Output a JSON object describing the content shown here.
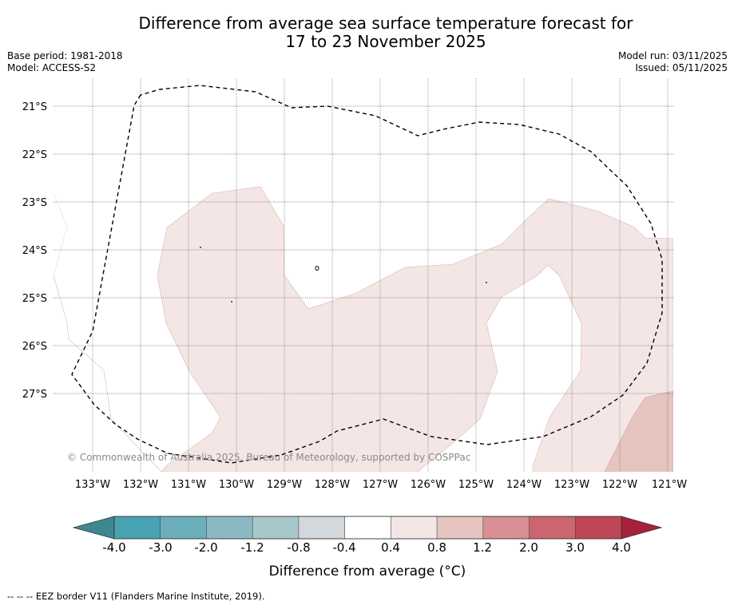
{
  "title": {
    "line1": "Difference from average sea surface temperature forecast for",
    "line2": "17 to 23 November 2025"
  },
  "meta": {
    "base_period": "Base period: 1981-2018",
    "model": "Model: ACCESS-S2",
    "model_run": "Model run: 03/11/2025",
    "issued": "Issued: 05/11/2025"
  },
  "map": {
    "longitude_labels": [
      "133°W",
      "132°W",
      "131°W",
      "130°W",
      "129°W",
      "128°W",
      "127°W",
      "126°W",
      "125°W",
      "124°W",
      "123°W",
      "122°W",
      "121°W"
    ],
    "latitude_labels": [
      "21°S",
      "22°S",
      "23°S",
      "24°S",
      "25°S",
      "26°S",
      "27°S"
    ],
    "copyright": "© Commonwealth of Australia 2025, Bureau of Meteorology, supported by COSPPac",
    "colors": {
      "anomaly_0_4_to_0_8": "#f4e6e5",
      "anomaly_0_8_to_1_2": "#e6c5c1"
    }
  },
  "colorbar": {
    "label": "Difference from average (°C)",
    "tick_labels": [
      "-4.0",
      "-3.0",
      "-2.0",
      "-1.2",
      "-0.8",
      "-0.4",
      "0.4",
      "0.8",
      "1.2",
      "2.0",
      "3.0",
      "4.0"
    ],
    "colors": {
      "extend_low": "#3d8790",
      "bins": [
        "#47a2b1",
        "#6bafbb",
        "#8bb9c2",
        "#a8c7cb",
        "#d2d8db",
        "#ffffff",
        "#f4e6e5",
        "#e6c5c1",
        "#d88f96",
        "#cb6670",
        "#bf4657"
      ],
      "extend_high": "#a8213a"
    }
  },
  "footnote": "-- -- -- EEZ border V11 (Flanders Marine Institute, 2019)."
}
